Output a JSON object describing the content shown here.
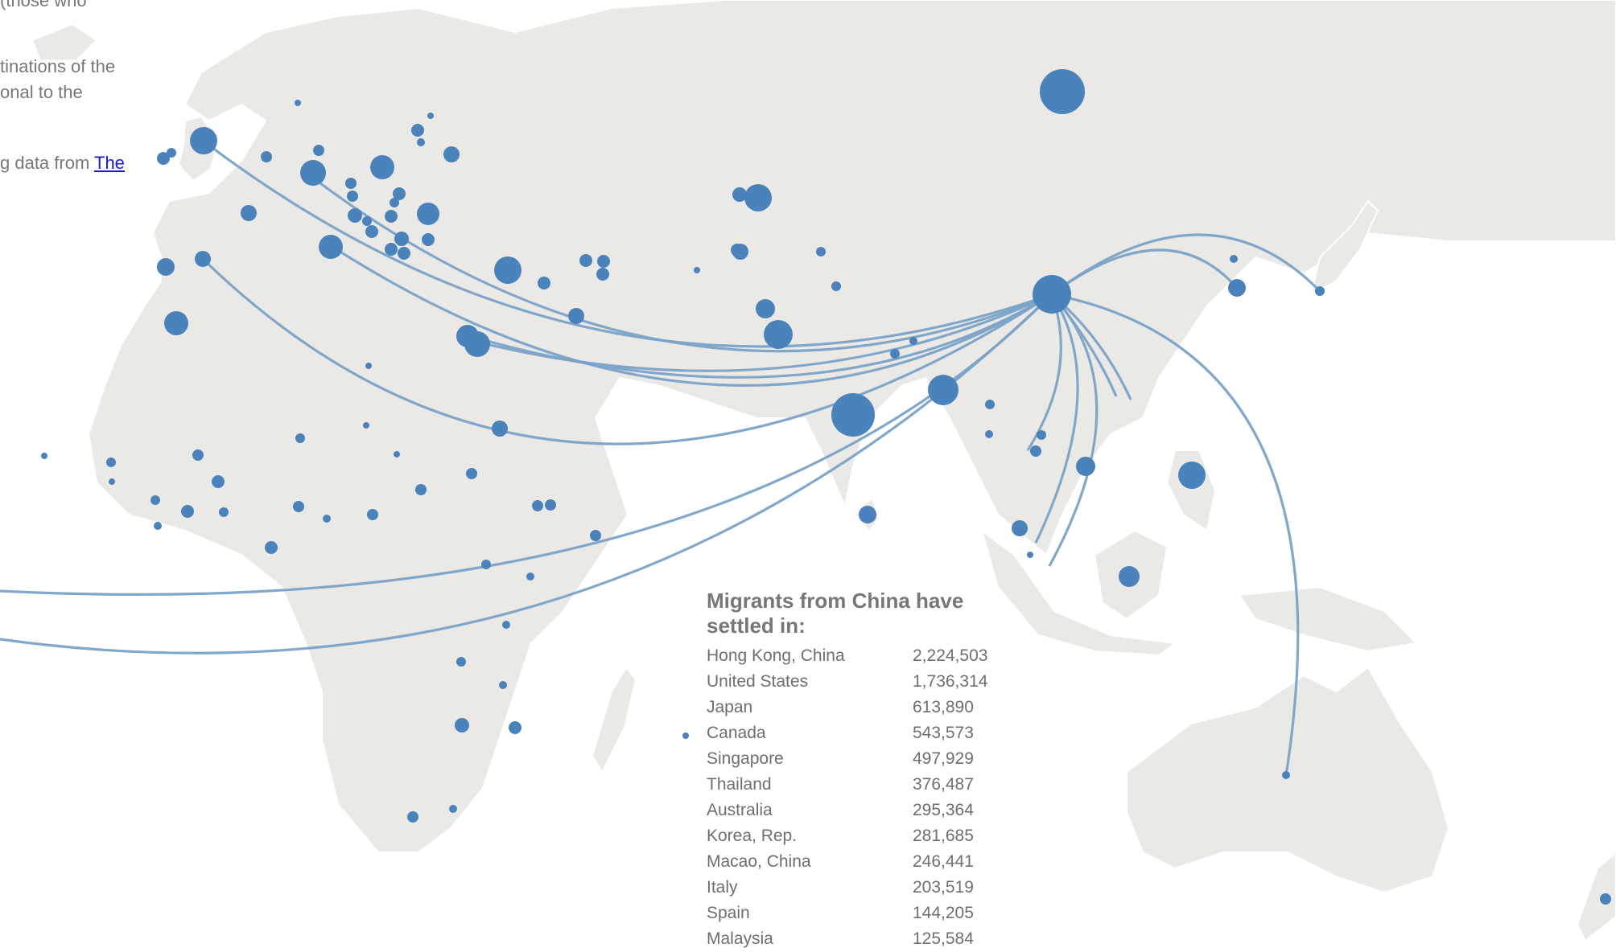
{
  "intro": {
    "line0": "(those who",
    "line1": "tinations of the",
    "line2": "onal to the",
    "line3_prefix": "g data from ",
    "line3_link": "The"
  },
  "map": {
    "origin": "China",
    "colors": {
      "land": "#ebe9e5",
      "border": "#ffffff",
      "bubble": "#4a82bb",
      "flow": "#7aa3c8"
    }
  },
  "panel": {
    "title": "Migrants from China have settled in:",
    "rows": [
      {
        "country": "Hong Kong, China",
        "value": "2,224,503"
      },
      {
        "country": "United States",
        "value": "1,736,314"
      },
      {
        "country": "Japan",
        "value": "613,890"
      },
      {
        "country": "Canada",
        "value": "543,573"
      },
      {
        "country": "Singapore",
        "value": "497,929"
      },
      {
        "country": "Thailand",
        "value": "376,487"
      },
      {
        "country": "Australia",
        "value": "295,364"
      },
      {
        "country": "Korea, Rep.",
        "value": "281,685"
      },
      {
        "country": "Macao, China",
        "value": "246,441"
      },
      {
        "country": "Italy",
        "value": "203,519"
      },
      {
        "country": "Spain",
        "value": "144,205"
      },
      {
        "country": "Malaysia",
        "value": "125,584"
      }
    ]
  }
}
